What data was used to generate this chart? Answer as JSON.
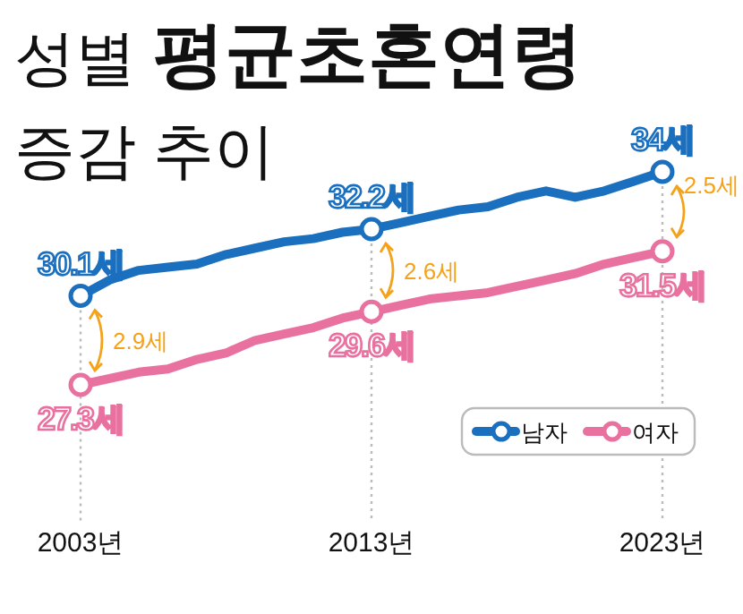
{
  "chart_data": {
    "type": "line",
    "title": "성별 평균초혼연령",
    "subtitle": "증감 추이",
    "x": [
      2003,
      2004,
      2005,
      2006,
      2007,
      2008,
      2009,
      2010,
      2011,
      2012,
      2013,
      2014,
      2015,
      2016,
      2017,
      2018,
      2019,
      2020,
      2021,
      2022,
      2023
    ],
    "xlim": [
      2003,
      2023
    ],
    "xticks": [
      {
        "value": 2003,
        "label": "2003년"
      },
      {
        "value": 2013,
        "label": "2013년"
      },
      {
        "value": 2023,
        "label": "2023년"
      }
    ],
    "series": [
      {
        "name": "남자",
        "color": "#1a6fbf",
        "values": [
          30.1,
          30.6,
          30.9,
          31.0,
          31.1,
          31.4,
          31.6,
          31.8,
          31.9,
          32.1,
          32.2,
          32.4,
          32.6,
          32.8,
          32.9,
          33.2,
          33.4,
          33.2,
          33.4,
          33.7,
          34.0
        ],
        "value_labels": [
          "30.1세",
          null,
          null,
          null,
          null,
          null,
          null,
          null,
          null,
          null,
          "32.2세",
          null,
          null,
          null,
          null,
          null,
          null,
          null,
          null,
          null,
          "34세"
        ]
      },
      {
        "name": "여자",
        "color": "#e9719f",
        "values": [
          27.3,
          27.5,
          27.7,
          27.8,
          28.1,
          28.3,
          28.7,
          28.9,
          29.1,
          29.4,
          29.6,
          29.8,
          30.0,
          30.1,
          30.2,
          30.4,
          30.6,
          30.8,
          31.1,
          31.3,
          31.5
        ],
        "value_labels": [
          "27.3세",
          null,
          null,
          null,
          null,
          null,
          null,
          null,
          null,
          null,
          "29.6세",
          null,
          null,
          null,
          null,
          null,
          null,
          null,
          null,
          null,
          "31.5세"
        ]
      }
    ],
    "annotations": [
      "2.9세",
      "2.6세",
      "2.5세"
    ],
    "grid": "x",
    "legend": "bottom right"
  }
}
